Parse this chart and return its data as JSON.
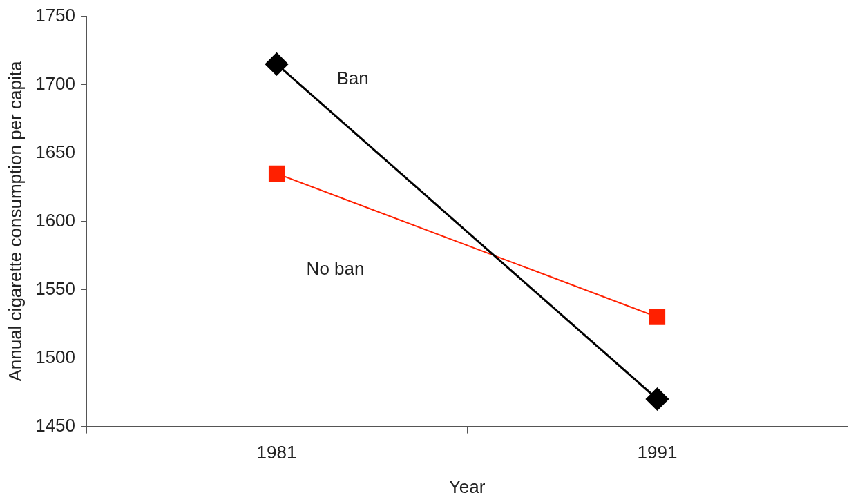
{
  "chart_data": {
    "type": "line",
    "xlabel": "Year",
    "ylabel": "Annual cigarette consumption per capita",
    "categories": [
      "1981",
      "1991"
    ],
    "series": [
      {
        "name": "Ban",
        "color": "#000000",
        "marker": "diamond",
        "values": [
          1715,
          1470
        ]
      },
      {
        "name": "No ban",
        "color": "#ff2000",
        "marker": "square",
        "values": [
          1635,
          1530
        ]
      }
    ],
    "ylim": [
      1450,
      1750
    ],
    "yticks": [
      1450,
      1500,
      1550,
      1600,
      1650,
      1700,
      1750
    ],
    "grid": false,
    "legend": false,
    "line_style": "solid"
  }
}
